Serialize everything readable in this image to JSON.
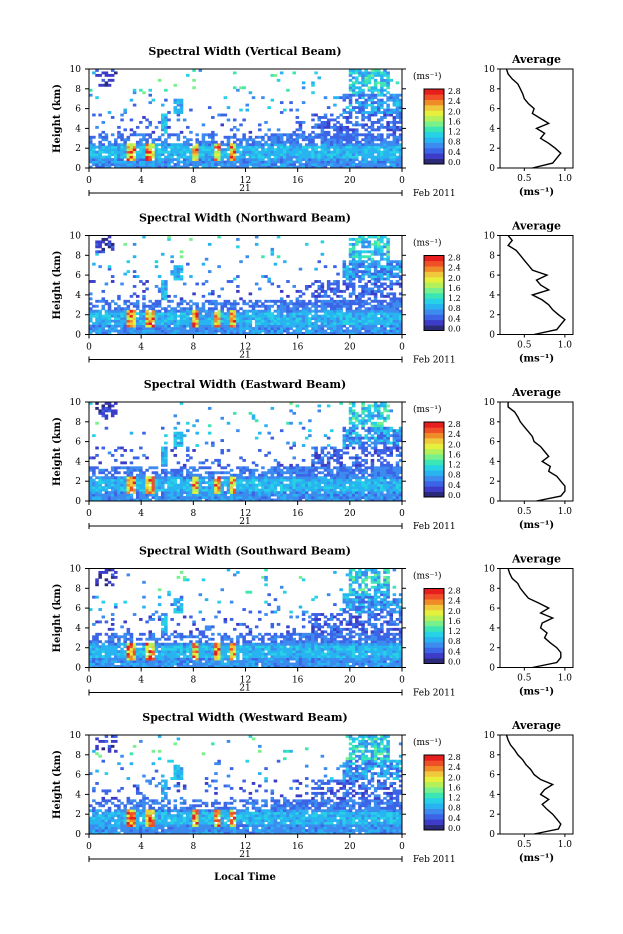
{
  "chart_data": {
    "type": "heatmap",
    "date_label": "Feb 2011",
    "day_label": "21",
    "xlabel": "Local Time",
    "xlim": [
      0,
      24
    ],
    "x_ticks": [
      "0",
      "4",
      "8",
      "12",
      "16",
      "20",
      "0"
    ],
    "ylabel": "Height (km)",
    "ylim": [
      0,
      10
    ],
    "y_ticks": [
      "0",
      "2",
      "4",
      "6",
      "8",
      "10"
    ],
    "colorbar": {
      "unit_label": "(ms⁻¹)",
      "range": [
        0,
        2.8
      ],
      "tick_labels": [
        "0.0",
        "0.4",
        "0.8",
        "1.2",
        "1.6",
        "2.0",
        "2.4",
        "2.8"
      ],
      "colors": [
        "#2a2a78",
        "#3c3cc8",
        "#3c64e6",
        "#3c8cf0",
        "#28b4f0",
        "#28d2e6",
        "#3ce6b4",
        "#78f08c",
        "#b4f05a",
        "#e6f03c",
        "#f0c83c",
        "#f08c28",
        "#f05028",
        "#e61e1e"
      ]
    },
    "average_panel": {
      "title": "Average",
      "xlabel": "(ms⁻¹)",
      "x_ticks": [
        "0.5",
        "1.0"
      ],
      "y_ticks": [
        "0",
        "2",
        "4",
        "6",
        "8",
        "10"
      ],
      "xlim": [
        0.2,
        1.1
      ],
      "ylim": [
        0,
        10
      ]
    },
    "panels": [
      {
        "title": "Spectral Width (Vertical Beam)",
        "average_profile": {
          "height_km": [
            0,
            0.5,
            1,
            1.5,
            2,
            2.5,
            3,
            3.5,
            4,
            4.5,
            5,
            5.5,
            6,
            6.5,
            7,
            7.5,
            8,
            8.5,
            9,
            9.5,
            10
          ],
          "width_ms": [
            0.6,
            0.85,
            0.9,
            0.95,
            0.88,
            0.8,
            0.7,
            0.75,
            0.65,
            0.8,
            0.7,
            0.6,
            0.62,
            0.55,
            0.5,
            0.48,
            0.45,
            0.42,
            0.35,
            0.3,
            0.28
          ]
        }
      },
      {
        "title": "Spectral Width (Northward Beam)",
        "average_profile": {
          "height_km": [
            0,
            0.5,
            1,
            1.5,
            2,
            2.5,
            3,
            3.5,
            4,
            4.5,
            5,
            5.5,
            6,
            6.5,
            7,
            7.5,
            8,
            8.5,
            9,
            9.5,
            10
          ],
          "width_ms": [
            0.62,
            0.9,
            0.95,
            1.0,
            0.92,
            0.85,
            0.8,
            0.72,
            0.6,
            0.8,
            0.7,
            0.65,
            0.78,
            0.6,
            0.55,
            0.5,
            0.45,
            0.4,
            0.3,
            0.35,
            0.3
          ]
        }
      },
      {
        "title": "Spectral Width (Eastward Beam)",
        "average_profile": {
          "height_km": [
            0,
            0.5,
            1,
            1.5,
            2,
            2.5,
            3,
            3.5,
            4,
            4.5,
            5,
            5.5,
            6,
            6.5,
            7,
            7.5,
            8,
            8.5,
            9,
            9.5,
            10
          ],
          "width_ms": [
            0.65,
            0.95,
            1.0,
            1.0,
            0.95,
            0.9,
            0.8,
            0.82,
            0.72,
            0.8,
            0.75,
            0.7,
            0.62,
            0.6,
            0.55,
            0.5,
            0.45,
            0.42,
            0.38,
            0.3,
            0.3
          ]
        }
      },
      {
        "title": "Spectral Width (Southward Beam)",
        "average_profile": {
          "height_km": [
            0,
            0.5,
            1,
            1.5,
            2,
            2.5,
            3,
            3.5,
            4,
            4.5,
            5,
            5.5,
            6,
            6.5,
            7,
            7.5,
            8,
            8.5,
            9,
            9.5,
            10
          ],
          "width_ms": [
            0.6,
            0.9,
            0.95,
            0.95,
            0.9,
            0.82,
            0.75,
            0.78,
            0.7,
            0.72,
            0.85,
            0.7,
            0.8,
            0.68,
            0.55,
            0.5,
            0.45,
            0.42,
            0.35,
            0.32,
            0.3
          ]
        }
      },
      {
        "title": "Spectral Width (Westward Beam)",
        "average_profile": {
          "height_km": [
            0,
            0.5,
            1,
            1.5,
            2,
            2.5,
            3,
            3.5,
            4,
            4.5,
            5,
            5.5,
            6,
            6.5,
            7,
            7.5,
            8,
            8.5,
            9,
            9.5,
            10
          ],
          "width_ms": [
            0.62,
            0.92,
            0.95,
            0.9,
            0.85,
            0.78,
            0.72,
            0.8,
            0.7,
            0.75,
            0.85,
            0.7,
            0.62,
            0.58,
            0.52,
            0.48,
            0.42,
            0.38,
            0.33,
            0.3,
            0.28
          ]
        }
      }
    ]
  }
}
